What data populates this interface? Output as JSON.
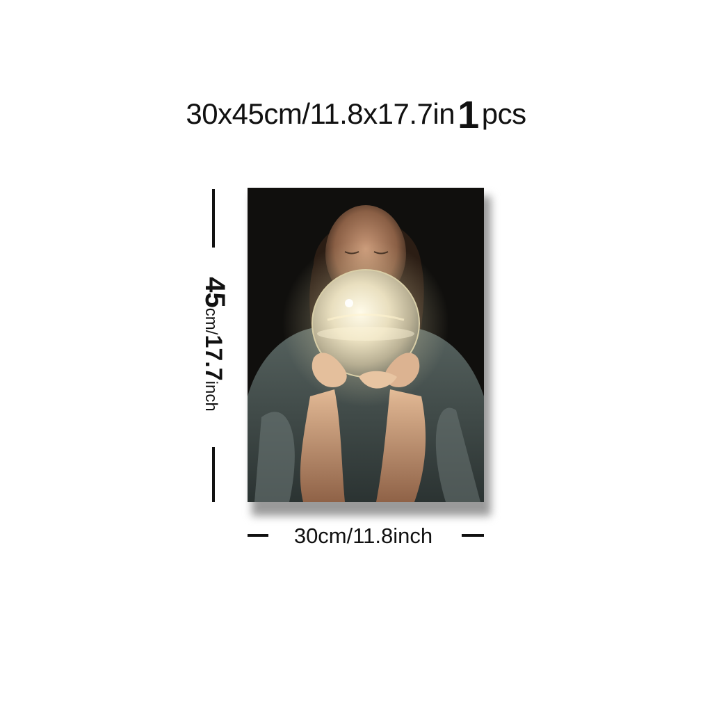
{
  "title": {
    "size_text": "30x45cm/11.8x17.7in",
    "quantity": "1",
    "unit": "pcs"
  },
  "dimensions": {
    "height_number": "45",
    "height_unit": "cm/",
    "height_inch_number": "17.7",
    "height_inch_unit": "inch",
    "width_label": "30cm/11.8inch"
  },
  "artwork": {
    "subject": "woman-holding-glowing-crystal-ball-painting"
  },
  "colors": {
    "background": "#ffffff",
    "text": "#111111",
    "canvas_dark": "#0f0e0c",
    "orb_glow": "#f3e9c8"
  }
}
